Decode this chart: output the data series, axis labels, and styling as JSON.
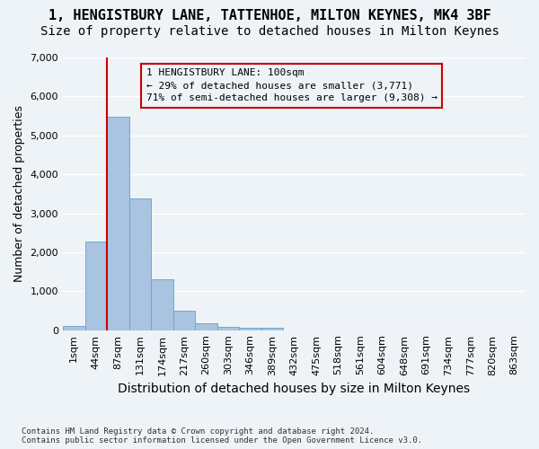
{
  "title_line1": "1, HENGISTBURY LANE, TATTENHOE, MILTON KEYNES, MK4 3BF",
  "title_line2": "Size of property relative to detached houses in Milton Keynes",
  "xlabel": "Distribution of detached houses by size in Milton Keynes",
  "ylabel": "Number of detached properties",
  "footnote": "Contains HM Land Registry data © Crown copyright and database right 2024.\nContains public sector information licensed under the Open Government Licence v3.0.",
  "bar_values": [
    100,
    2270,
    5480,
    3380,
    1310,
    510,
    175,
    95,
    60,
    55,
    0,
    0,
    0,
    0,
    0,
    0,
    0,
    0,
    0,
    0,
    0
  ],
  "bar_labels": [
    "1sqm",
    "44sqm",
    "87sqm",
    "131sqm",
    "174sqm",
    "217sqm",
    "260sqm",
    "303sqm",
    "346sqm",
    "389sqm",
    "432sqm",
    "475sqm",
    "518sqm",
    "561sqm",
    "604sqm",
    "648sqm",
    "691sqm",
    "734sqm",
    "777sqm",
    "820sqm",
    "863sqm"
  ],
  "bar_color": "#a8c4e0",
  "bar_edgecolor": "#6fa8d0",
  "vline_x": 2,
  "vline_color": "#cc0000",
  "annotation_text": "1 HENGISTBURY LANE: 100sqm\n← 29% of detached houses are smaller (3,771)\n71% of semi-detached houses are larger (9,308) →",
  "annotation_box_edgecolor": "#cc0000",
  "ylim": [
    0,
    7000
  ],
  "yticks": [
    0,
    1000,
    2000,
    3000,
    4000,
    5000,
    6000,
    7000
  ],
  "background_color": "#eef3f8",
  "grid_color": "#ffffff",
  "title_fontsize": 11,
  "subtitle_fontsize": 10,
  "axis_fontsize": 9,
  "tick_fontsize": 8
}
